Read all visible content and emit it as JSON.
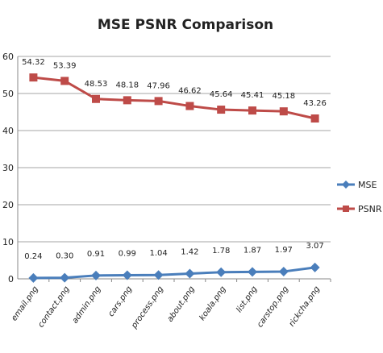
{
  "chart_data": {
    "type": "line",
    "title": "MSE PSNR Comparison",
    "xlabel": "",
    "ylabel": "",
    "ylim": [
      0,
      60
    ],
    "yticks": [
      0,
      10,
      20,
      30,
      40,
      50,
      60
    ],
    "grid": true,
    "legend_position": "right",
    "categories": [
      "email.png",
      "contact.png",
      "admin.png",
      "cars.png",
      "process.png",
      "about.png",
      "koala.png",
      "list.png",
      "carstop.png",
      "rickcha.png"
    ],
    "series": [
      {
        "name": "MSE",
        "color": "#4a7ebb",
        "marker": "diamond",
        "values": [
          0.24,
          0.3,
          0.91,
          0.99,
          1.04,
          1.42,
          1.78,
          1.87,
          1.97,
          3.07
        ],
        "labels": [
          "0.24",
          "0.30",
          "0.91",
          "0.99",
          "1.04",
          "1.42",
          "1.78",
          "1.87",
          "1.97",
          "3.07"
        ]
      },
      {
        "name": "PSNR",
        "color": "#be4b48",
        "marker": "square",
        "values": [
          54.32,
          53.39,
          48.53,
          48.18,
          47.96,
          46.62,
          45.64,
          45.41,
          45.18,
          43.26
        ],
        "labels": [
          "54.32",
          "53.39",
          "48.53",
          "48.18",
          "47.96",
          "46.62",
          "45.64",
          "45.41",
          "45.18",
          "43.26"
        ]
      }
    ]
  }
}
